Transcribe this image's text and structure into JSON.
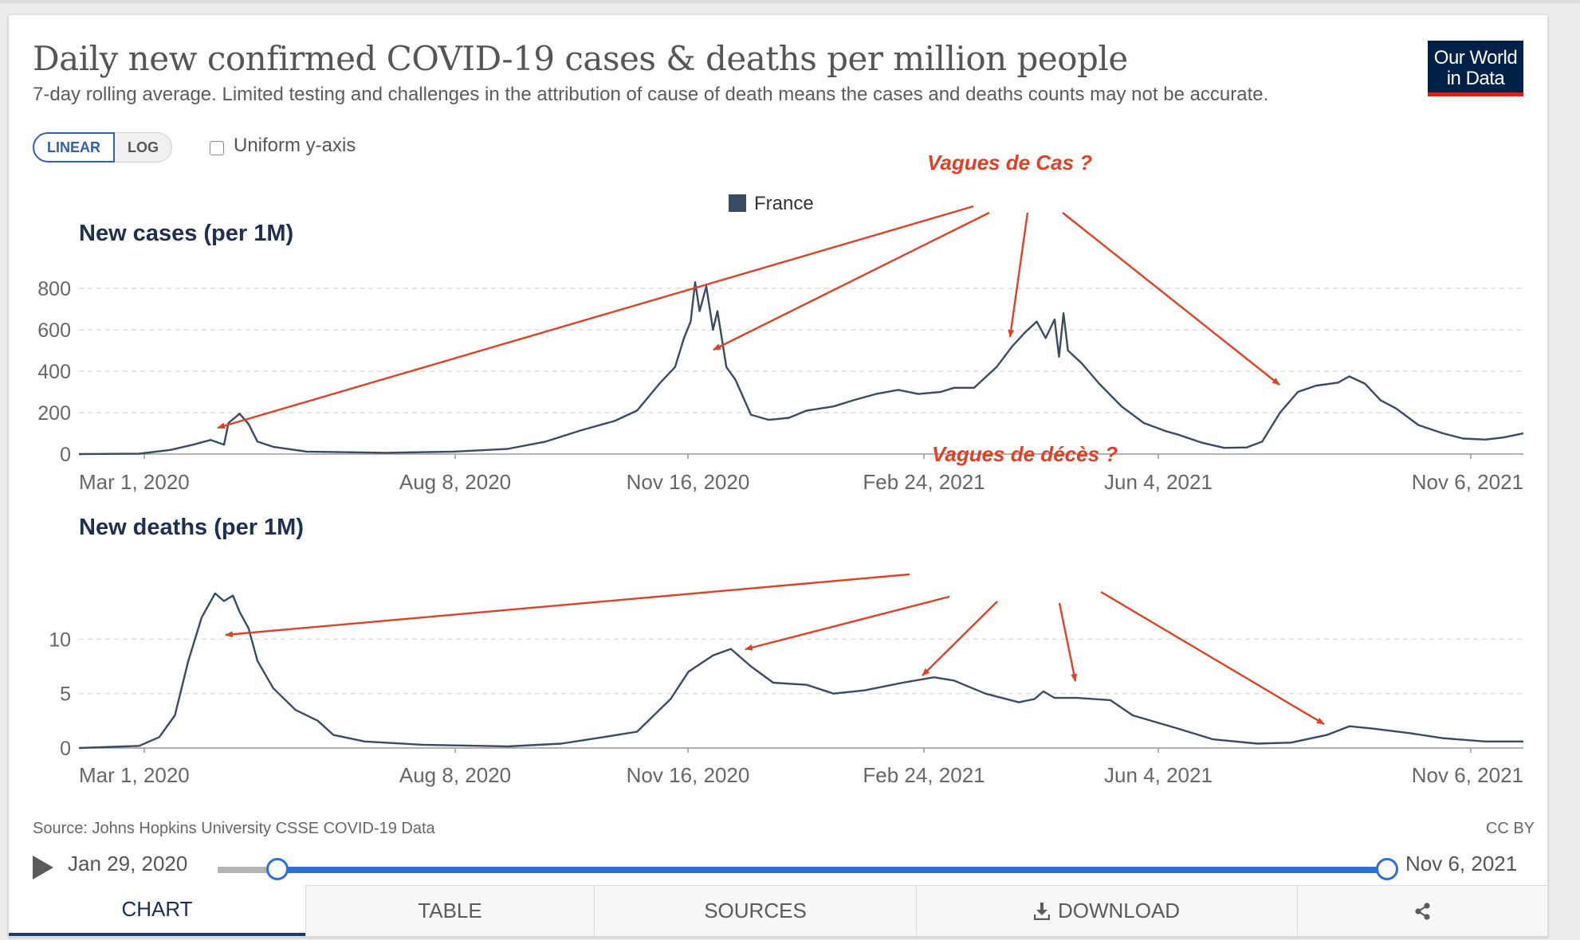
{
  "header": {
    "title": "Daily new confirmed COVID-19 cases & deaths per million people",
    "subtitle": "7-day rolling average. Limited testing and challenges in the attribution of cause of death means the cases and deaths counts may not be accurate.",
    "logo_line1": "Our World",
    "logo_line2": "in Data"
  },
  "controls": {
    "linear_label": "LINEAR",
    "log_label": "LOG",
    "uniform_label": "Uniform y-axis",
    "uniform_checked": false
  },
  "legend": {
    "label": "France",
    "color": "#3b4a63"
  },
  "chart_data": [
    {
      "type": "line",
      "title": "New cases (per 1M)",
      "xlabel": "",
      "ylabel": "",
      "x_range": [
        "2020-01-29",
        "2021-11-06"
      ],
      "ylim": [
        0,
        800
      ],
      "y_ticks": [
        0,
        200,
        400,
        600,
        800
      ],
      "x_tick_labels": [
        "Mar 1, 2020",
        "Aug 8, 2020",
        "Nov 16, 2020",
        "Feb 24, 2021",
        "Jun 4, 2021",
        "Nov 6, 2021"
      ],
      "grid": true,
      "series": [
        {
          "name": "France",
          "color": "#3b4a63",
          "points": [
            [
              "2020-01-29",
              0
            ],
            [
              "2020-02-25",
              2
            ],
            [
              "2020-03-10",
              20
            ],
            [
              "2020-03-20",
              45
            ],
            [
              "2020-03-28",
              68
            ],
            [
              "2020-04-03",
              45
            ],
            [
              "2020-04-05",
              150
            ],
            [
              "2020-04-10",
              195
            ],
            [
              "2020-04-14",
              145
            ],
            [
              "2020-04-18",
              60
            ],
            [
              "2020-04-25",
              35
            ],
            [
              "2020-05-10",
              12
            ],
            [
              "2020-06-15",
              6
            ],
            [
              "2020-07-15",
              12
            ],
            [
              "2020-08-08",
              25
            ],
            [
              "2020-08-25",
              60
            ],
            [
              "2020-09-10",
              115
            ],
            [
              "2020-09-25",
              160
            ],
            [
              "2020-10-05",
              210
            ],
            [
              "2020-10-15",
              340
            ],
            [
              "2020-10-22",
              420
            ],
            [
              "2020-10-26",
              560
            ],
            [
              "2020-10-29",
              640
            ],
            [
              "2020-10-31",
              830
            ],
            [
              "2020-11-02",
              690
            ],
            [
              "2020-11-05",
              810
            ],
            [
              "2020-11-08",
              600
            ],
            [
              "2020-11-10",
              690
            ],
            [
              "2020-11-14",
              420
            ],
            [
              "2020-11-18",
              360
            ],
            [
              "2020-11-25",
              190
            ],
            [
              "2020-12-03",
              165
            ],
            [
              "2020-12-12",
              175
            ],
            [
              "2020-12-20",
              210
            ],
            [
              "2021-01-01",
              230
            ],
            [
              "2021-01-10",
              260
            ],
            [
              "2021-01-20",
              290
            ],
            [
              "2021-01-30",
              310
            ],
            [
              "2021-02-08",
              290
            ],
            [
              "2021-02-18",
              300
            ],
            [
              "2021-02-24",
              320
            ],
            [
              "2021-03-05",
              320
            ],
            [
              "2021-03-15",
              420
            ],
            [
              "2021-03-22",
              520
            ],
            [
              "2021-03-28",
              590
            ],
            [
              "2021-04-02",
              640
            ],
            [
              "2021-04-06",
              560
            ],
            [
              "2021-04-10",
              650
            ],
            [
              "2021-04-12",
              470
            ],
            [
              "2021-04-14",
              680
            ],
            [
              "2021-04-16",
              500
            ],
            [
              "2021-04-22",
              440
            ],
            [
              "2021-04-30",
              340
            ],
            [
              "2021-05-10",
              230
            ],
            [
              "2021-05-20",
              150
            ],
            [
              "2021-05-30",
              110
            ],
            [
              "2021-06-04",
              95
            ],
            [
              "2021-06-15",
              55
            ],
            [
              "2021-06-25",
              30
            ],
            [
              "2021-07-05",
              32
            ],
            [
              "2021-07-12",
              60
            ],
            [
              "2021-07-20",
              200
            ],
            [
              "2021-07-28",
              300
            ],
            [
              "2021-08-05",
              330
            ],
            [
              "2021-08-15",
              345
            ],
            [
              "2021-08-20",
              375
            ],
            [
              "2021-08-27",
              340
            ],
            [
              "2021-09-03",
              260
            ],
            [
              "2021-09-10",
              220
            ],
            [
              "2021-09-20",
              140
            ],
            [
              "2021-10-01",
              100
            ],
            [
              "2021-10-10",
              75
            ],
            [
              "2021-10-20",
              70
            ],
            [
              "2021-10-28",
              80
            ],
            [
              "2021-11-06",
              100
            ]
          ]
        }
      ]
    },
    {
      "type": "line",
      "title": "New deaths (per 1M)",
      "xlabel": "",
      "ylabel": "",
      "x_range": [
        "2020-01-29",
        "2021-11-06"
      ],
      "ylim": [
        0,
        15
      ],
      "y_ticks": [
        0,
        5,
        10
      ],
      "x_tick_labels": [
        "Mar 1, 2020",
        "Aug 8, 2020",
        "Nov 16, 2020",
        "Feb 24, 2021",
        "Jun 4, 2021",
        "Nov 6, 2021"
      ],
      "grid": true,
      "series": [
        {
          "name": "France",
          "color": "#3b4a63",
          "points": [
            [
              "2020-01-29",
              0
            ],
            [
              "2020-02-25",
              0.2
            ],
            [
              "2020-03-05",
              1
            ],
            [
              "2020-03-12",
              3
            ],
            [
              "2020-03-18",
              8
            ],
            [
              "2020-03-24",
              12
            ],
            [
              "2020-03-30",
              14.2
            ],
            [
              "2020-04-03",
              13.5
            ],
            [
              "2020-04-07",
              14
            ],
            [
              "2020-04-10",
              12.5
            ],
            [
              "2020-04-14",
              11
            ],
            [
              "2020-04-18",
              8
            ],
            [
              "2020-04-25",
              5.5
            ],
            [
              "2020-05-05",
              3.5
            ],
            [
              "2020-05-15",
              2.5
            ],
            [
              "2020-05-22",
              1.2
            ],
            [
              "2020-06-05",
              0.6
            ],
            [
              "2020-07-01",
              0.3
            ],
            [
              "2020-08-08",
              0.15
            ],
            [
              "2020-09-01",
              0.4
            ],
            [
              "2020-09-20",
              1
            ],
            [
              "2020-10-05",
              1.5
            ],
            [
              "2020-10-20",
              4.5
            ],
            [
              "2020-10-28",
              7
            ],
            [
              "2020-11-08",
              8.5
            ],
            [
              "2020-11-16",
              9.1
            ],
            [
              "2020-11-25",
              7.5
            ],
            [
              "2020-12-05",
              6
            ],
            [
              "2020-12-20",
              5.8
            ],
            [
              "2021-01-01",
              5
            ],
            [
              "2021-01-15",
              5.3
            ],
            [
              "2021-02-01",
              6
            ],
            [
              "2021-02-15",
              6.5
            ],
            [
              "2021-02-24",
              6.2
            ],
            [
              "2021-03-10",
              5
            ],
            [
              "2021-03-25",
              4.2
            ],
            [
              "2021-04-01",
              4.5
            ],
            [
              "2021-04-05",
              5.2
            ],
            [
              "2021-04-10",
              4.6
            ],
            [
              "2021-04-20",
              4.6
            ],
            [
              "2021-05-05",
              4.4
            ],
            [
              "2021-05-15",
              3
            ],
            [
              "2021-06-04",
              1.8
            ],
            [
              "2021-06-20",
              0.8
            ],
            [
              "2021-07-10",
              0.4
            ],
            [
              "2021-07-25",
              0.5
            ],
            [
              "2021-08-10",
              1.2
            ],
            [
              "2021-08-20",
              2
            ],
            [
              "2021-08-30",
              1.8
            ],
            [
              "2021-09-15",
              1.4
            ],
            [
              "2021-10-01",
              0.9
            ],
            [
              "2021-10-20",
              0.6
            ],
            [
              "2021-11-06",
              0.6
            ]
          ]
        }
      ]
    }
  ],
  "annotations": {
    "cases_label": "Vagues de Cas ?",
    "deaths_label": "Vagues de décès ?",
    "color": "#e04126"
  },
  "footer": {
    "source": "Source: Johns Hopkins University CSSE COVID-19 Data",
    "license": "CC BY"
  },
  "timeline": {
    "start_label": "Jan 29, 2020",
    "end_label": "Nov 6, 2021",
    "range": [
      "2020-01-29",
      "2021-11-06"
    ]
  },
  "tabs": [
    {
      "label": "CHART",
      "icon": ""
    },
    {
      "label": "TABLE",
      "icon": ""
    },
    {
      "label": "SOURCES",
      "icon": ""
    },
    {
      "label": "DOWNLOAD",
      "icon": "download-icon"
    },
    {
      "label": "",
      "icon": "share-icon"
    }
  ]
}
